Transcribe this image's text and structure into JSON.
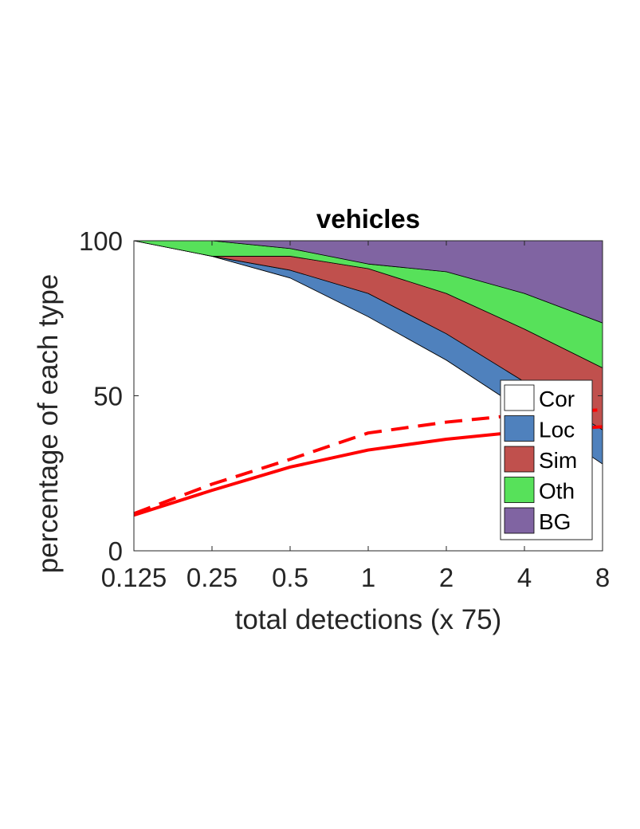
{
  "chart_data": {
    "type": "area",
    "title": "vehicles",
    "xlabel": "total detections (x 75)",
    "ylabel": "percentage of each type",
    "x_scale": "log2",
    "x": [
      0.125,
      0.25,
      0.5,
      1,
      2,
      4,
      8
    ],
    "x_tick_labels": [
      "0.125",
      "0.25",
      "0.5",
      "1",
      "2",
      "4",
      "8"
    ],
    "y_ticks": [
      0,
      50,
      100
    ],
    "y_tick_labels": [
      "0",
      "50",
      "100"
    ],
    "xlim": [
      0.125,
      8
    ],
    "ylim": [
      0,
      100
    ],
    "stacked": true,
    "series": [
      {
        "name": "Cor",
        "color": "#ffffff",
        "values": [
          100,
          95,
          88,
          75.5,
          61.5,
          45,
          28
        ]
      },
      {
        "name": "Loc",
        "color": "#4f81bd",
        "values": [
          0,
          0,
          2.5,
          7.5,
          8.5,
          9.5,
          11
        ]
      },
      {
        "name": "Sim",
        "color": "#c0504d",
        "values": [
          0,
          0,
          4.5,
          8,
          13,
          17,
          20
        ]
      },
      {
        "name": "Oth",
        "color": "#57e15a",
        "values": [
          0,
          5,
          2.5,
          1.5,
          7,
          11.5,
          14.5
        ]
      },
      {
        "name": "BG",
        "color": "#8064a2",
        "values": [
          0,
          0,
          2.5,
          7.5,
          10,
          17,
          26.5
        ]
      }
    ],
    "lines": [
      {
        "style": "solid",
        "color": "#ff0000",
        "values": [
          11.5,
          19.5,
          27,
          32.5,
          36,
          38.5,
          40
        ]
      },
      {
        "style": "dashed",
        "color": "#ff0000",
        "values": [
          12,
          21.5,
          29.5,
          38,
          41.5,
          44,
          45.5
        ]
      }
    ],
    "legend_position": "bottom-right",
    "grid": false
  }
}
